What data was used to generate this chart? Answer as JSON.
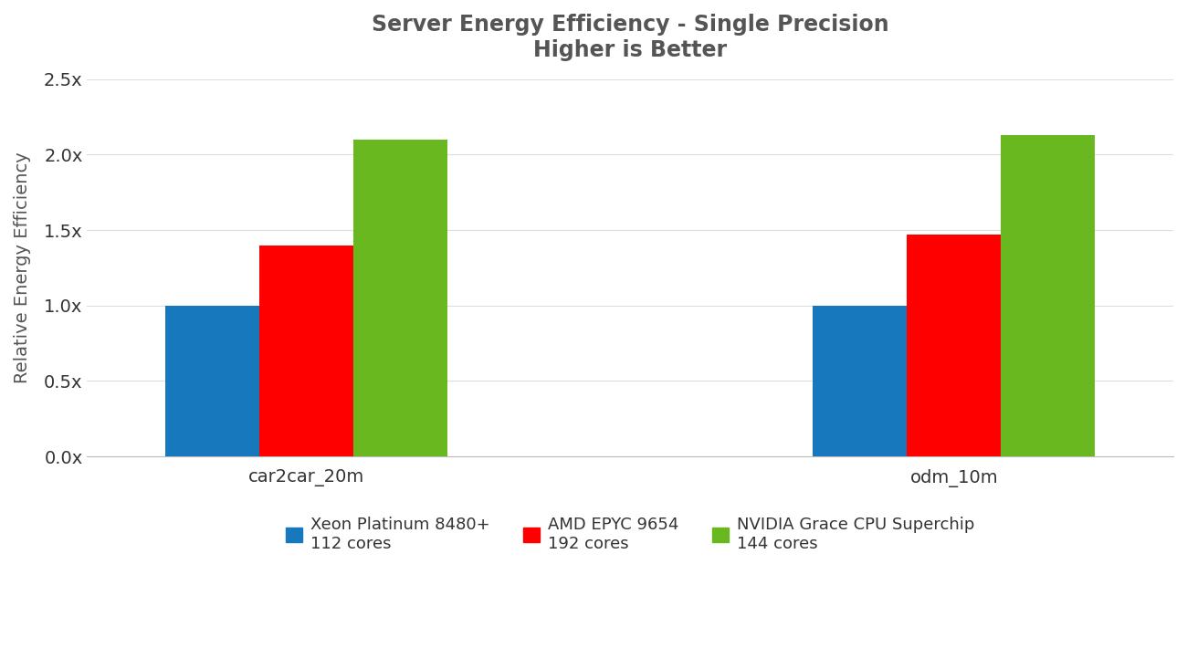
{
  "title_line1": "Server Energy Efficiency - Single Precision",
  "title_line2": "Higher is Better",
  "ylabel": "Relative Energy Efficiency",
  "groups": [
    "car2car_20m",
    "odm_10m"
  ],
  "series": [
    {
      "label": "Xeon Platinum 8480+\n112 cores",
      "color": "#1878be",
      "values": [
        1.0,
        1.0
      ]
    },
    {
      "label": "AMD EPYC 9654\n192 cores",
      "color": "#ff0000",
      "values": [
        1.4,
        1.47
      ]
    },
    {
      "label": "NVIDIA Grace CPU Superchip\n144 cores",
      "color": "#6ab820",
      "values": [
        2.1,
        2.13
      ]
    }
  ],
  "ylim": [
    0,
    2.5
  ],
  "yticks": [
    0.0,
    0.5,
    1.0,
    1.5,
    2.0,
    2.5
  ],
  "ytick_labels": [
    "0.0x",
    "0.5x",
    "1.0x",
    "1.5x",
    "2.0x",
    "2.5x"
  ],
  "background_color": "#ffffff",
  "bar_width": 0.18,
  "title_fontsize": 17,
  "axis_label_fontsize": 14,
  "tick_fontsize": 14,
  "legend_fontsize": 13,
  "title_color": "#555555",
  "tick_color": "#333333",
  "axis_label_color": "#555555",
  "group_centers": [
    0.38,
    1.62
  ]
}
